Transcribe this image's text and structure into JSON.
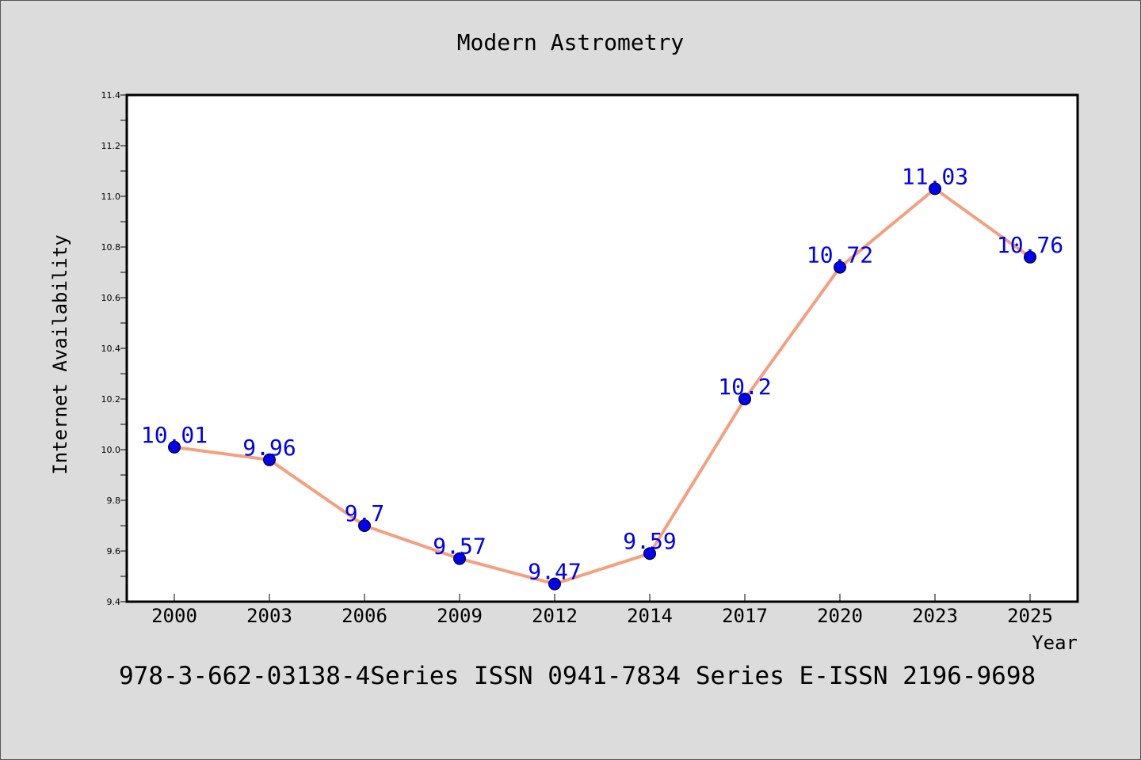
{
  "chart_data": {
    "type": "line",
    "title": "Modern Astrometry",
    "xlabel": "Year",
    "ylabel": "Internet Availability",
    "categories": [
      "2000",
      "2003",
      "2006",
      "2009",
      "2012",
      "2014",
      "2017",
      "2020",
      "2023",
      "2025"
    ],
    "series": [
      {
        "values": [
          10.01,
          9.96,
          9.7,
          9.57,
          9.47,
          9.59,
          10.2,
          10.72,
          11.03,
          10.76
        ],
        "line_color": "#f4a07f",
        "marker_color": "#0000ee"
      }
    ],
    "data_labels": [
      "10.01",
      "9.96",
      "9.7",
      "9.57",
      "9.47",
      "9.59",
      "10.2",
      "10.72",
      "11.03",
      "10.76"
    ],
    "ylim": [
      9.4,
      11.4
    ],
    "yticks": [
      "9.4",
      "9.6",
      "9.8",
      "10.0",
      "10.2",
      "10.4",
      "10.6",
      "10.8",
      "11.0",
      "11.2",
      "11.4"
    ],
    "grid": false,
    "legend": "none",
    "annotation": "978-3-662-03138-4Series ISSN 0941-7834 Series E-ISSN 2196-9698",
    "colors": {
      "background": "#dcdcdc",
      "plot_background": "#ffffff",
      "label_color": "#0000ee",
      "text": "#000000"
    }
  }
}
